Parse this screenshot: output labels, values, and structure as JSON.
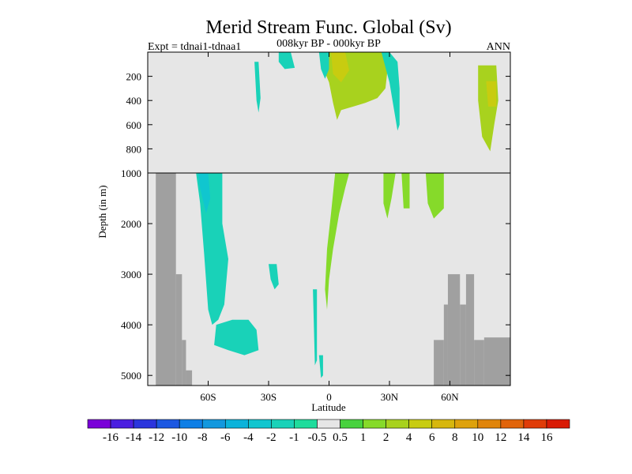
{
  "chart_data": {
    "type": "heatmap",
    "title": "Merid Stream Func. Global (Sv)",
    "subtitle_left": "Expt = tdnai1-tdnaa1",
    "subtitle_center": "008kyr BP - 000kyr BP",
    "subtitle_right": "ANN",
    "xlabel": "Latitude",
    "ylabel": "Depth (in m)",
    "xlim": [
      -90,
      90
    ],
    "x_ticks": [
      -60,
      -30,
      0,
      30,
      60
    ],
    "x_tick_labels": [
      "60S",
      "30S",
      "0",
      "30N",
      "60N"
    ],
    "upper_panel": {
      "ylim": [
        0,
        1000
      ],
      "y_ticks": [
        200,
        400,
        600,
        800,
        1000
      ],
      "y_tick_labels": [
        "200",
        "400",
        "600",
        "800",
        "1000"
      ]
    },
    "lower_panel": {
      "ylim": [
        1000,
        5200
      ],
      "y_ticks": [
        2000,
        3000,
        4000,
        5000
      ],
      "y_tick_labels": [
        "2000",
        "3000",
        "4000",
        "5000"
      ]
    },
    "colorbar": {
      "labels": [
        "-16",
        "-14",
        "-12",
        "-10",
        "-8",
        "-6",
        "-4",
        "-2",
        "-1",
        "-0.5",
        "0.5",
        "1",
        "2",
        "4",
        "6",
        "8",
        "10",
        "12",
        "14",
        "16"
      ],
      "colors": [
        "#7a00d8",
        "#4b1fe0",
        "#2b35dd",
        "#1c58e2",
        "#0e7fe6",
        "#1298de",
        "#0bb3da",
        "#10c6cf",
        "#19d2b8",
        "#1fdc9c",
        "#e6e6e6",
        "#48d23e",
        "#86da2a",
        "#a8d21e",
        "#c8cc10",
        "#d7b70e",
        "#dea20c",
        "#e0850b",
        "#e1640a",
        "#e03c08",
        "#d91b05"
      ]
    },
    "missing_color": "#e6e6e6",
    "land_color": "#a0a0a0",
    "land_mask": [
      {
        "lat": [
          -86,
          -76
        ],
        "depth": [
          1000,
          5200
        ]
      },
      {
        "lat": [
          -76,
          -73
        ],
        "depth": [
          3000,
          5200
        ]
      },
      {
        "lat": [
          -73,
          -71
        ],
        "depth": [
          4300,
          5200
        ]
      },
      {
        "lat": [
          -71,
          -68
        ],
        "depth": [
          4900,
          5200
        ]
      },
      {
        "lat": [
          52,
          57
        ],
        "depth": [
          4300,
          5200
        ]
      },
      {
        "lat": [
          57,
          59
        ],
        "depth": [
          3600,
          5200
        ]
      },
      {
        "lat": [
          59,
          65
        ],
        "depth": [
          3000,
          5200
        ]
      },
      {
        "lat": [
          65,
          68
        ],
        "depth": [
          3600,
          5200
        ]
      },
      {
        "lat": [
          68,
          72
        ],
        "depth": [
          3000,
          5200
        ]
      },
      {
        "lat": [
          72,
          77
        ],
        "depth": [
          4300,
          5200
        ]
      },
      {
        "lat": [
          77,
          90
        ],
        "depth": [
          4250,
          5200
        ]
      }
    ],
    "regions": [
      {
        "name": "deep-southern-cell",
        "level": "-1",
        "points": [
          [
            -66,
            1000
          ],
          [
            -53,
            1000
          ],
          [
            -53,
            2000
          ],
          [
            -50,
            2700
          ],
          [
            -52,
            3600
          ],
          [
            -55,
            3900
          ],
          [
            -58,
            4000
          ],
          [
            -60,
            3700
          ],
          [
            -62,
            2600
          ],
          [
            -64,
            1600
          ]
        ]
      },
      {
        "name": "deep-southern-core",
        "level": "-2",
        "points": [
          [
            -65,
            1000
          ],
          [
            -60,
            1000
          ],
          [
            -59,
            1500
          ],
          [
            -61,
            1800
          ],
          [
            -64,
            1300
          ]
        ]
      },
      {
        "name": "abyssal-southern-cell",
        "level": "-1",
        "points": [
          [
            -56,
            4000
          ],
          [
            -48,
            3900
          ],
          [
            -40,
            3900
          ],
          [
            -36,
            4100
          ],
          [
            -35,
            4500
          ],
          [
            -42,
            4600
          ],
          [
            -50,
            4500
          ],
          [
            -57,
            4400
          ]
        ]
      },
      {
        "name": "upper-cyan-35s",
        "level": "-1",
        "points": [
          [
            -37,
            80
          ],
          [
            -35,
            80
          ],
          [
            -34,
            380
          ],
          [
            -35,
            500
          ],
          [
            -36,
            400
          ]
        ]
      },
      {
        "name": "upper-cyan-27s",
        "level": "-1",
        "points": [
          [
            -25,
            0
          ],
          [
            -19,
            0
          ],
          [
            -17,
            130
          ],
          [
            -22,
            140
          ],
          [
            -25,
            80
          ]
        ]
      },
      {
        "name": "upper-main-positive",
        "level": "2",
        "points": [
          [
            -5,
            0
          ],
          [
            2,
            0
          ],
          [
            12,
            0
          ],
          [
            22,
            0
          ],
          [
            30,
            0
          ],
          [
            28,
            300
          ],
          [
            24,
            380
          ],
          [
            18,
            420
          ],
          [
            12,
            450
          ],
          [
            6,
            480
          ],
          [
            4,
            560
          ],
          [
            2,
            420
          ],
          [
            0,
            250
          ],
          [
            -3,
            130
          ]
        ]
      },
      {
        "name": "upper-main-core",
        "level": "4",
        "points": [
          [
            1,
            0
          ],
          [
            8,
            0
          ],
          [
            10,
            150
          ],
          [
            6,
            250
          ],
          [
            2,
            180
          ]
        ]
      },
      {
        "name": "upper-cyan-west",
        "level": "-1",
        "points": [
          [
            -5,
            0
          ],
          [
            0,
            0
          ],
          [
            0,
            140
          ],
          [
            -2,
            220
          ],
          [
            -4,
            140
          ]
        ]
      },
      {
        "name": "upper-cyan-30n",
        "level": "-1",
        "points": [
          [
            26,
            0
          ],
          [
            30,
            0
          ],
          [
            34,
            80
          ],
          [
            35,
            300
          ],
          [
            35,
            600
          ],
          [
            34,
            650
          ],
          [
            32,
            450
          ],
          [
            30,
            250
          ]
        ]
      },
      {
        "name": "upper-green-north",
        "level": "2",
        "points": [
          [
            74,
            110
          ],
          [
            83,
            110
          ],
          [
            84,
            400
          ],
          [
            82,
            600
          ],
          [
            80,
            820
          ],
          [
            76,
            700
          ],
          [
            74,
            400
          ]
        ]
      },
      {
        "name": "upper-core-north",
        "level": "4",
        "points": [
          [
            78,
            240
          ],
          [
            83,
            240
          ],
          [
            83,
            450
          ],
          [
            79,
            450
          ]
        ]
      },
      {
        "name": "deep-equatorial-green",
        "level": "1",
        "points": [
          [
            3,
            1000
          ],
          [
            10,
            1000
          ],
          [
            8,
            1300
          ],
          [
            5,
            1800
          ],
          [
            2,
            2500
          ],
          [
            0,
            3100
          ],
          [
            -1,
            3700
          ],
          [
            -2,
            3300
          ],
          [
            -1,
            2500
          ],
          [
            1,
            1800
          ]
        ]
      },
      {
        "name": "deep-north-green-1",
        "level": "1",
        "points": [
          [
            27,
            1000
          ],
          [
            33,
            1000
          ],
          [
            31,
            1500
          ],
          [
            29,
            1900
          ],
          [
            27,
            1600
          ]
        ]
      },
      {
        "name": "deep-north-green-2",
        "level": "1",
        "points": [
          [
            36,
            1000
          ],
          [
            40,
            1000
          ],
          [
            40,
            1700
          ],
          [
            37,
            1700
          ]
        ]
      },
      {
        "name": "deep-north-green-3",
        "level": "1",
        "points": [
          [
            48,
            1000
          ],
          [
            57,
            1000
          ],
          [
            57,
            1700
          ],
          [
            52,
            1900
          ],
          [
            49,
            1600
          ]
        ]
      },
      {
        "name": "deep-cyan-40s",
        "level": "-1",
        "points": [
          [
            -30,
            2800
          ],
          [
            -26,
            2800
          ],
          [
            -25,
            3200
          ],
          [
            -27,
            3300
          ],
          [
            -29,
            3100
          ]
        ]
      },
      {
        "name": "deep-cyan-10s",
        "level": "-1",
        "points": [
          [
            -8,
            3300
          ],
          [
            -6,
            3300
          ],
          [
            -6,
            4700
          ],
          [
            -7,
            4800
          ]
        ]
      },
      {
        "name": "deep-cyan-low",
        "level": "-1",
        "points": [
          [
            -5,
            4600
          ],
          [
            -3,
            4600
          ],
          [
            -3,
            5000
          ],
          [
            -4,
            5050
          ]
        ]
      }
    ]
  }
}
